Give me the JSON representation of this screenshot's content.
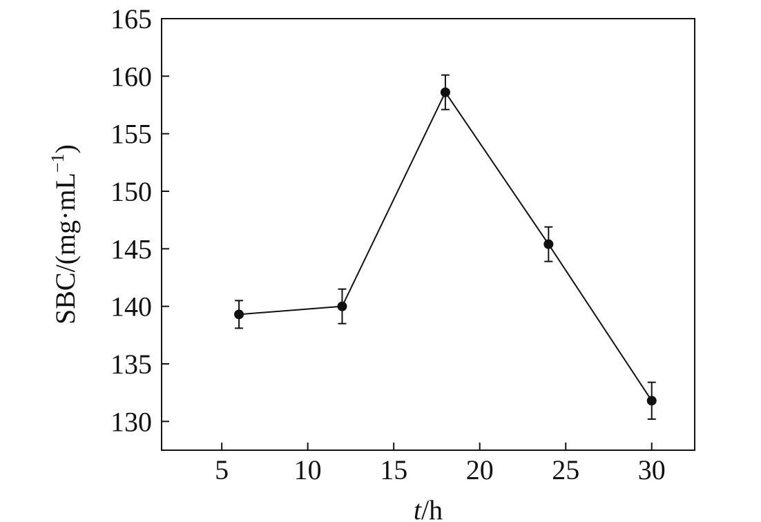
{
  "chart_data": {
    "type": "line",
    "title": "",
    "xlabel": "t/h",
    "xlabel_italic_part": "t",
    "xlabel_rest": "/h",
    "ylabel": "SBC/(mg·mL⁻¹)",
    "ylabel_main": "SBC/(mg·mL",
    "ylabel_sup": "−1",
    "ylabel_close": ")",
    "xlim": [
      1.5,
      32.5
    ],
    "ylim": [
      127.5,
      165
    ],
    "xticks": [
      5,
      10,
      15,
      20,
      25,
      30
    ],
    "yticks": [
      130,
      135,
      140,
      145,
      150,
      155,
      160,
      165
    ],
    "grid": false,
    "legend": "none",
    "colors": {
      "line": "#111111",
      "marker": "#111111",
      "axis": "#111111"
    },
    "series": [
      {
        "x": [
          6,
          12,
          18,
          24,
          30
        ],
        "y": [
          139.3,
          140.0,
          158.6,
          145.4,
          131.8
        ],
        "error": [
          1.2,
          1.5,
          1.5,
          1.5,
          1.6
        ]
      }
    ]
  }
}
